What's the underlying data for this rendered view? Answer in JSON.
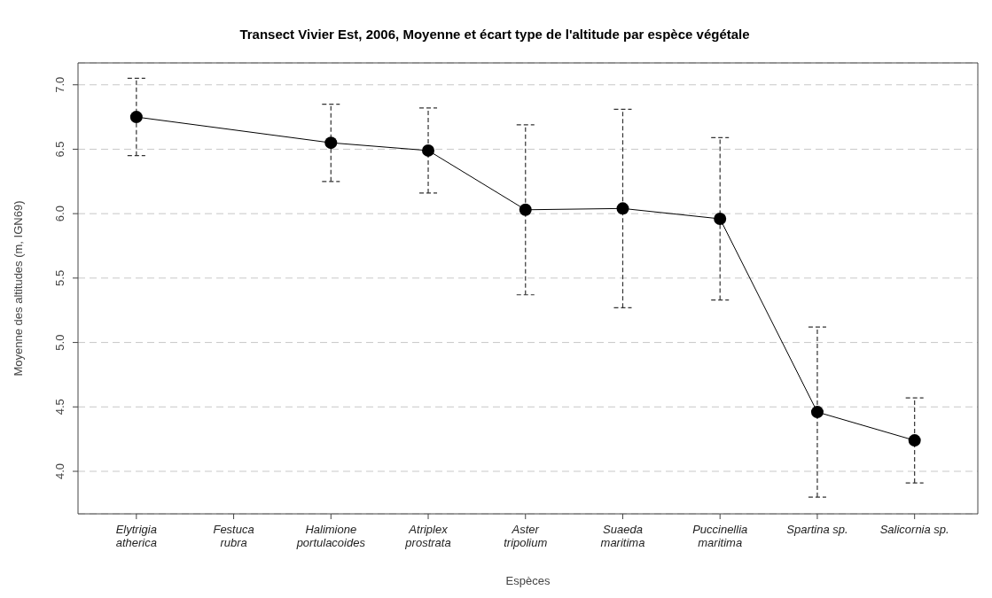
{
  "chart_data": {
    "type": "line",
    "title": "Transect Vivier Est, 2006, Moyenne et écart type de l'altitude par espèce végétale",
    "xlabel": "Espèces",
    "ylabel": "Moyenne des altitudes (m, IGN69)",
    "categories": [
      "Elytrigia atherica",
      "Festuca rubra",
      "Halimione portulacoides",
      "Atriplex prostrata",
      "Aster tripolium",
      "Suaeda maritima",
      "Puccinellia maritima",
      "Spartina sp.",
      "Salicornia sp."
    ],
    "series": [
      {
        "color": "#000000",
        "values": [
          6.75,
          null,
          6.55,
          6.49,
          6.03,
          6.04,
          5.96,
          4.46,
          4.24
        ],
        "errors": [
          0.3,
          null,
          0.3,
          0.33,
          0.66,
          0.77,
          0.63,
          0.66,
          0.33
        ]
      }
    ],
    "ylim": [
      3.67,
      7.17
    ],
    "yticks": [
      {
        "value": 4,
        "label": "4.0"
      },
      {
        "value": 4.5,
        "label": "4.5"
      },
      {
        "value": 5,
        "label": "5.0"
      },
      {
        "value": 5.5,
        "label": "5.5"
      },
      {
        "value": 6,
        "label": "6.0"
      },
      {
        "value": 6.5,
        "label": "6.5"
      },
      {
        "value": 7,
        "label": "7.0"
      }
    ],
    "grid": "y",
    "marker": "circle",
    "line_style": "solid"
  }
}
